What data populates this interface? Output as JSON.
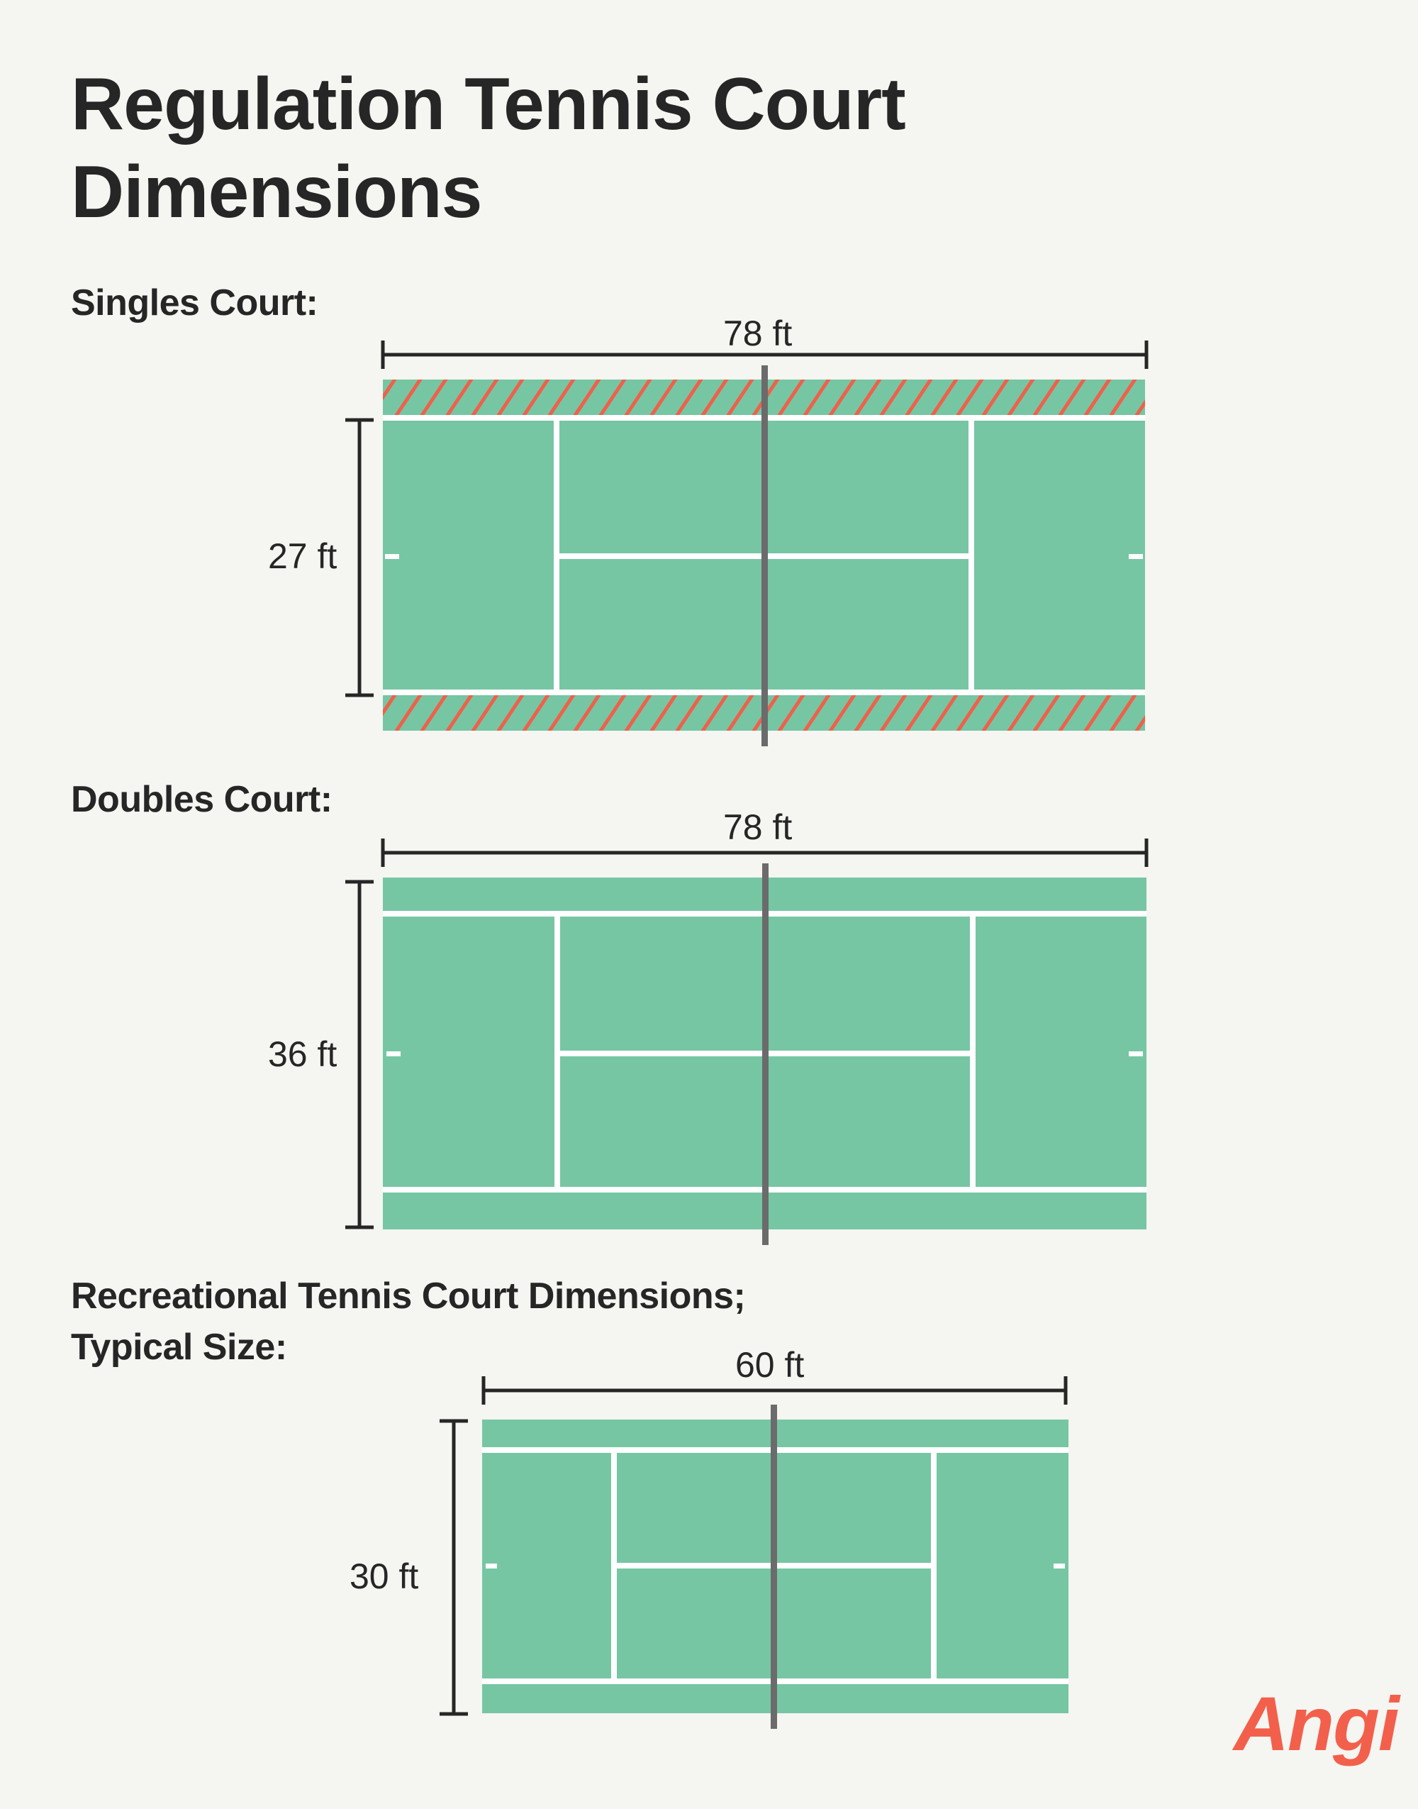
{
  "title": "Regulation Tennis Court Dimensions",
  "sections": [
    {
      "label": "Singles Court:",
      "length": "78 ft",
      "width": "27 ft"
    },
    {
      "label": "Doubles Court:",
      "length": "78 ft",
      "width": "36 ft"
    },
    {
      "label_line1": "Recreational Tennis Court Dimensions;",
      "label_line2": "Typical Size:",
      "length": "60 ft",
      "width": "30 ft"
    }
  ],
  "logo": "Angi",
  "colors": {
    "background": "#f5f5f1",
    "court": "#76c6a4",
    "lines": "#ffffff",
    "net": "#6b6b6b",
    "hatch": "#f0604a",
    "text": "#262626",
    "logo": "#f2604c"
  }
}
